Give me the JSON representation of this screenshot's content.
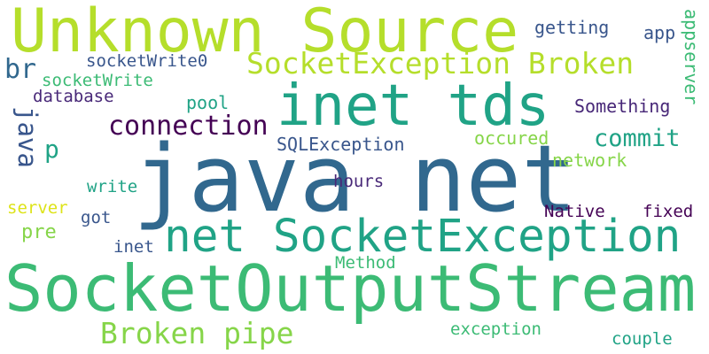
{
  "colors": {
    "background": "#ffffff",
    "yellow_green": "#b5de2b",
    "light_green": "#86d549",
    "green": "#3cbb75",
    "teal": "#20a386",
    "blue": "#31688e",
    "slate": "#39568c",
    "indigo": "#482878",
    "purple": "#440154",
    "bright_yellow": "#dde318"
  },
  "words": {
    "java_net": "java net",
    "socketoutputstream": "SocketOutputStream",
    "unknown_source": "Unknown Source",
    "inet_tds": "inet tds",
    "net_socketexception": "net SocketException",
    "socketexception_broken": "SocketException Broken",
    "broken_pipe": "Broken pipe",
    "connection": "connection",
    "commit": "commit",
    "br": "br",
    "p": "p",
    "java": "java",
    "pre": "pre",
    "socketwrite0": "socketWrite0",
    "socketwrite": "socketWrite",
    "database": "database",
    "pool": "pool",
    "sqlexception": "SQLException",
    "getting": "getting",
    "app": "app",
    "appserver": "appserver",
    "something": "Something",
    "occured": "occured",
    "network": "network",
    "hours": "hours",
    "write": "write",
    "server": "server",
    "got": "got",
    "inet": "inet",
    "native": "Native",
    "fixed": "fixed",
    "method": "Method",
    "exception": "exception",
    "couple": "couple"
  }
}
